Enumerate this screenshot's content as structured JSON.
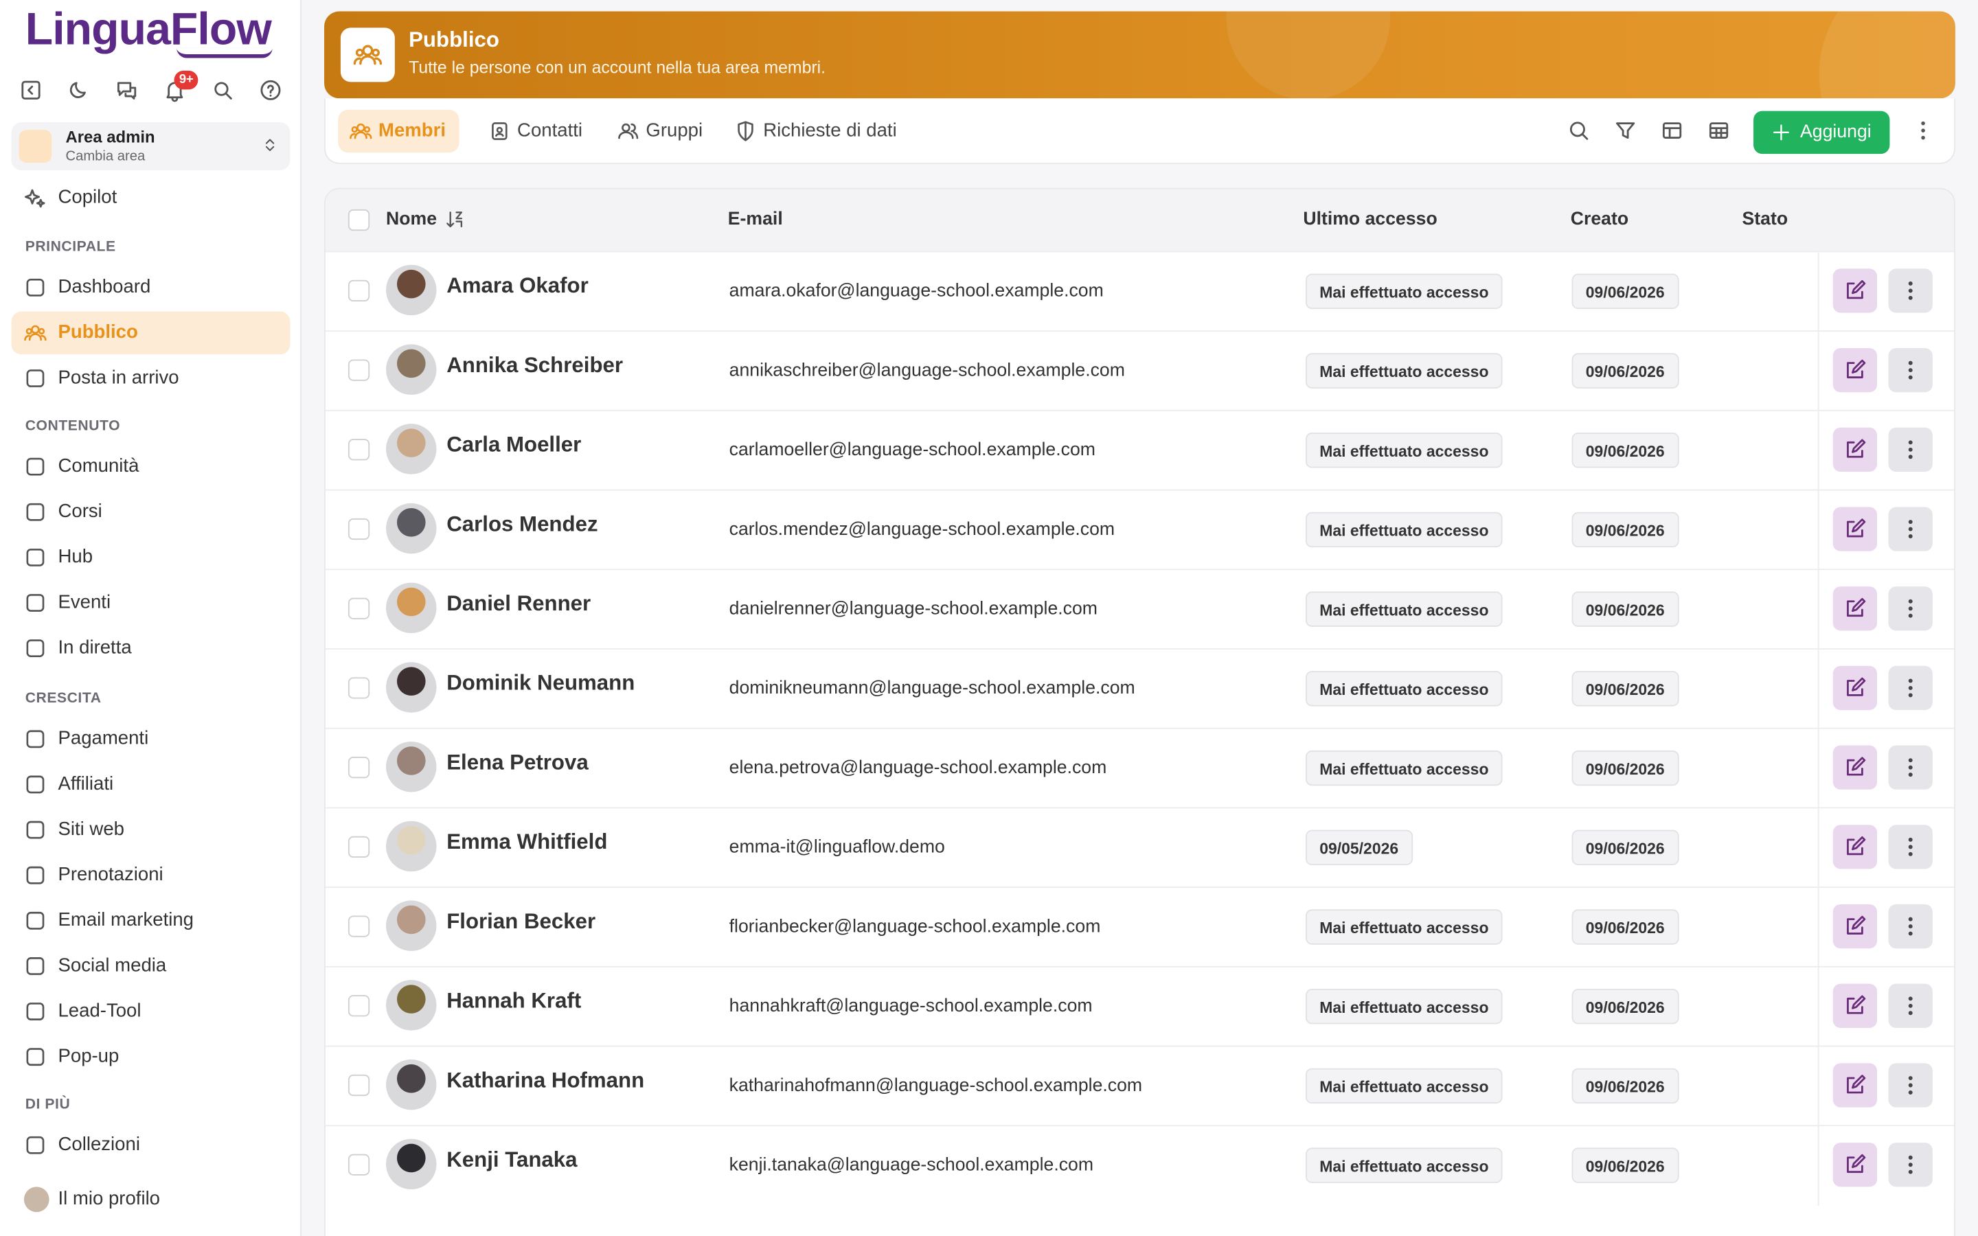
{
  "sidebar": {
    "brand": "LinguaFlow",
    "notification_badge": "9+",
    "workspace": {
      "name": "Area admin",
      "action": "Cambia area"
    },
    "copilot": "Copilot",
    "sections": [
      {
        "title": "PRINCIPALE",
        "items": [
          "Dashboard",
          "Pubblico",
          "Posta in arrivo"
        ]
      },
      {
        "title": "CONTENUTO",
        "items": [
          "Comunità",
          "Corsi",
          "Hub",
          "Eventi",
          "In diretta"
        ]
      },
      {
        "title": "CRESCITA",
        "items": [
          "Pagamenti",
          "Affiliati",
          "Siti web",
          "Prenotazioni",
          "Email marketing",
          "Social media",
          "Lead-Tool",
          "Pop-up"
        ]
      },
      {
        "title": "DI PIÙ",
        "items": [
          "Collezioni"
        ]
      }
    ],
    "profile": "Il mio profilo"
  },
  "header": {
    "title": "Pubblico",
    "subtitle": "Tutte le persone con un account nella tua area membri."
  },
  "tabs": [
    "Membri",
    "Contatti",
    "Gruppi",
    "Richieste di dati"
  ],
  "add_button": "Aggiungi",
  "table": {
    "columns": [
      "Nome",
      "E-mail",
      "Ultimo accesso",
      "Creato",
      "Stato"
    ],
    "rows": [
      [
        "Amara Okafor",
        "amara.okafor@language-school.example.com",
        "Mai effettuato accesso",
        "09/06/2026"
      ],
      [
        "Annika Schreiber",
        "annikaschreiber@language-school.example.com",
        "Mai effettuato accesso",
        "09/06/2026"
      ],
      [
        "Carla Moeller",
        "carlamoeller@language-school.example.com",
        "Mai effettuato accesso",
        "09/06/2026"
      ],
      [
        "Carlos Mendez",
        "carlos.mendez@language-school.example.com",
        "Mai effettuato accesso",
        "09/06/2026"
      ],
      [
        "Daniel Renner",
        "danielrenner@language-school.example.com",
        "Mai effettuato accesso",
        "09/06/2026"
      ],
      [
        "Dominik Neumann",
        "dominikneumann@language-school.example.com",
        "Mai effettuato accesso",
        "09/06/2026"
      ],
      [
        "Elena Petrova",
        "elena.petrova@language-school.example.com",
        "Mai effettuato accesso",
        "09/06/2026"
      ],
      [
        "Emma Whitfield",
        "emma-it@linguaflow.demo",
        "09/05/2026",
        "09/06/2026"
      ],
      [
        "Florian Becker",
        "florianbecker@language-school.example.com",
        "Mai effettuato accesso",
        "09/06/2026"
      ],
      [
        "Hannah Kraft",
        "hannahkraft@language-school.example.com",
        "Mai effettuato accesso",
        "09/06/2026"
      ],
      [
        "Katharina Hofmann",
        "katharinahofmann@language-school.example.com",
        "Mai effettuato accesso",
        "09/06/2026"
      ],
      [
        "Kenji Tanaka",
        "kenji.tanaka@language-school.example.com",
        "Mai effettuato accesso",
        "09/06/2026"
      ]
    ]
  }
}
